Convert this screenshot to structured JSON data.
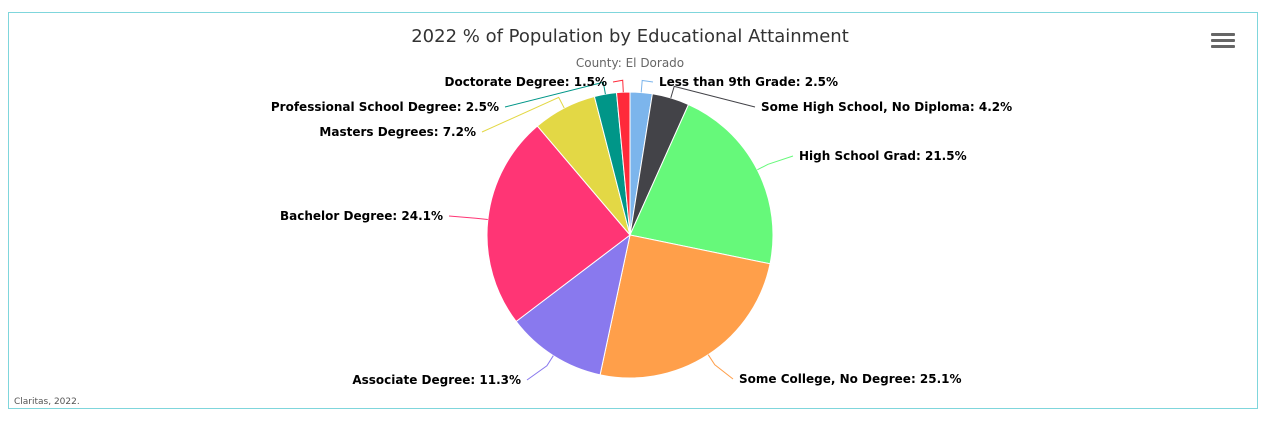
{
  "chart_data": {
    "type": "pie",
    "title": "2022 % of Population by Educational Attainment",
    "subtitle": "County: El Dorado",
    "credits": "Claritas, 2022.",
    "slices": [
      {
        "name": "Less than 9th Grade",
        "value": 2.5,
        "label": "Less than 9th Grade: 2.5%",
        "color": "#7cb5ec"
      },
      {
        "name": "Some High School, No Diploma",
        "value": 4.2,
        "label": "Some High School, No Diploma: 4.2%",
        "color": "#434348"
      },
      {
        "name": "High School Grad",
        "value": 21.5,
        "label": "High School Grad: 21.5%",
        "color": "#66f97a"
      },
      {
        "name": "Some College, No Degree",
        "value": 25.1,
        "label": "Some College, No Degree: 25.1%",
        "color": "#ff9f4a"
      },
      {
        "name": "Associate Degree",
        "value": 11.3,
        "label": "Associate Degree: 11.3%",
        "color": "#8979ee"
      },
      {
        "name": "Bachelor Degree",
        "value": 24.1,
        "label": "Bachelor Degree: 24.1%",
        "color": "#ff3575"
      },
      {
        "name": "Masters Degrees",
        "value": 7.2,
        "label": "Masters Degrees: 7.2%",
        "color": "#e3d845"
      },
      {
        "name": "Professional School Degree",
        "value": 2.5,
        "label": "Professional School Degree: 2.5%",
        "color": "#009688"
      },
      {
        "name": "Doctorate Degree",
        "value": 1.5,
        "label": "Doctorate Degree: 1.5%",
        "color": "#ff2a3a"
      }
    ]
  },
  "menu_icon": "hamburger-menu-icon"
}
